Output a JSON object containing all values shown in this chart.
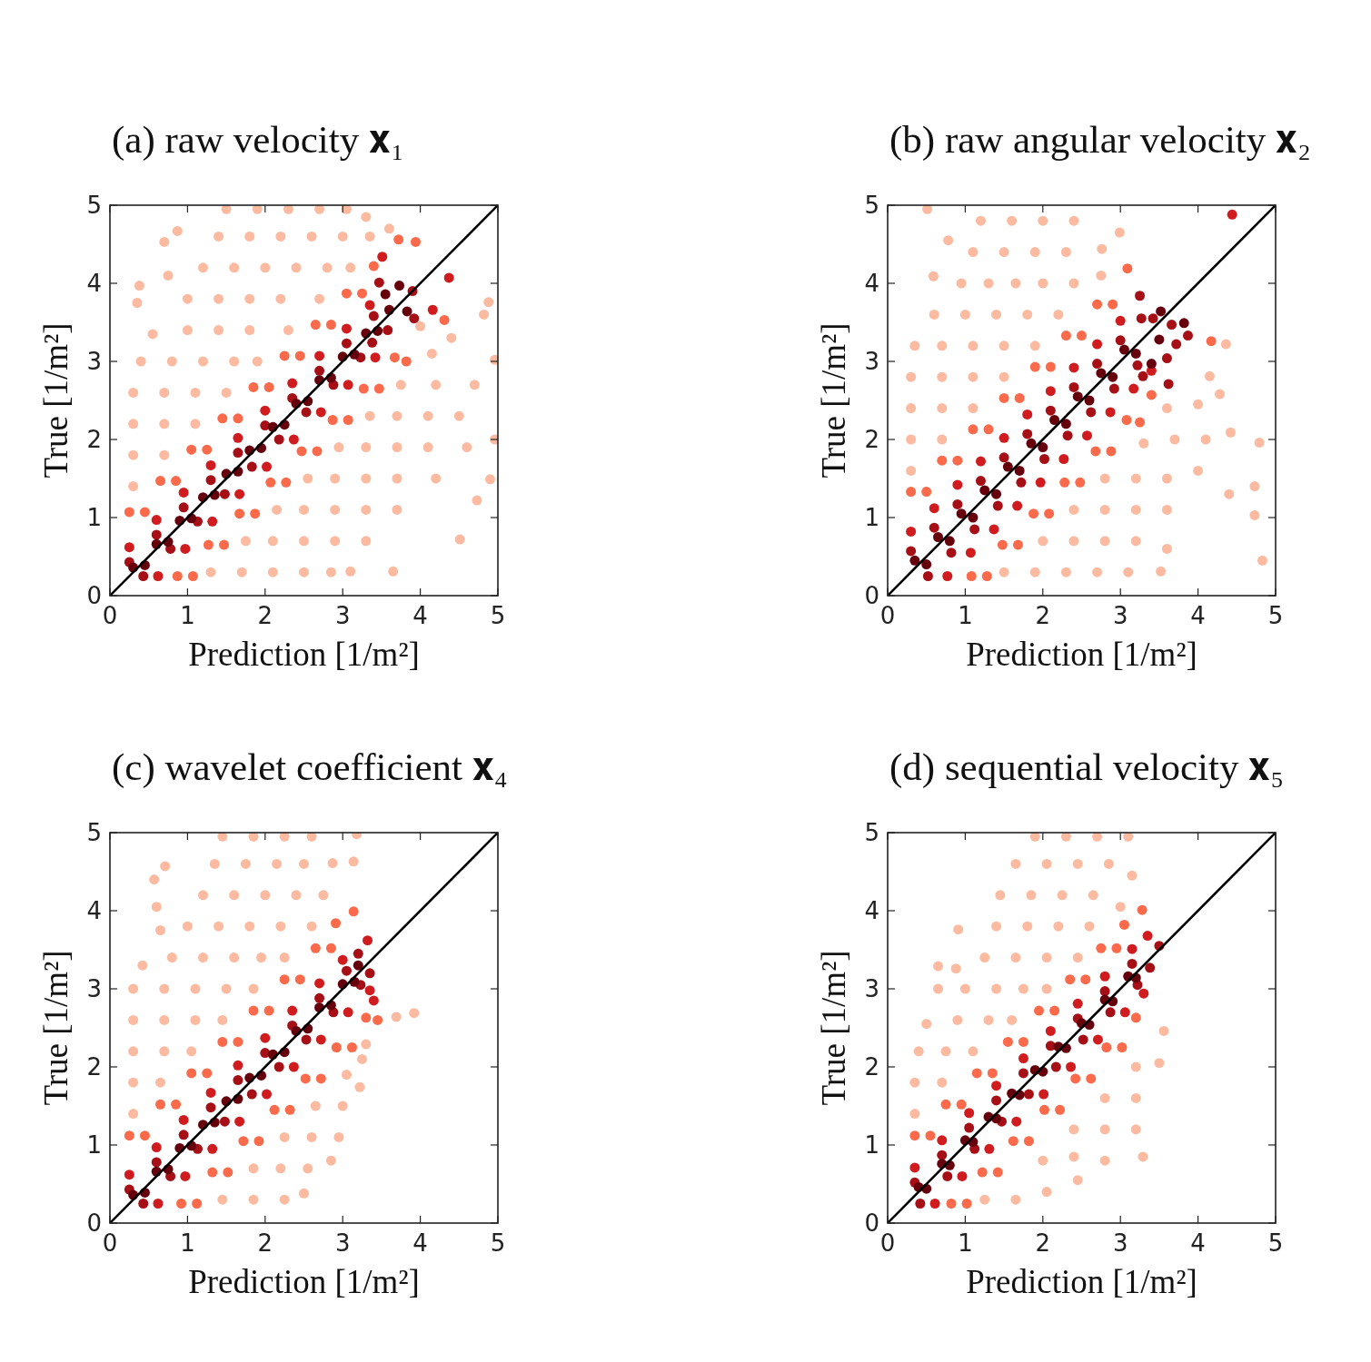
{
  "chart_data": [
    {
      "type": "scatter",
      "title": "(a) raw velocity 𝐱₁",
      "xlabel": "Prediction [1/m²]",
      "ylabel": "True [1/m²]",
      "xlim": [
        0,
        5
      ],
      "ylim": [
        0,
        5
      ],
      "xticks": [
        0,
        1,
        2,
        3,
        4,
        5
      ],
      "yticks": [
        0,
        1,
        2,
        3,
        4,
        5
      ],
      "marker": "circle",
      "series": [
        {
          "color": "#fcbba1",
          "x": [
            0.3,
            0.3,
            0.7,
            0.3,
            0.7,
            1.1,
            0.3,
            0.7,
            1.1,
            1.5,
            0.4,
            0.8,
            1.2,
            1.6,
            1.9,
            0.55,
            1.0,
            1.4,
            1.8,
            2.3,
            0.35,
            0.38,
            1.0,
            1.4,
            1.8,
            2.2,
            2.7,
            0.7,
            0.75,
            1.2,
            1.6,
            2.0,
            2.4,
            2.8,
            3.1,
            0.87,
            1.4,
            1.8,
            2.2,
            2.6,
            3.0,
            3.35,
            1.5,
            1.9,
            2.3,
            2.7,
            3.05,
            3.3,
            3.6,
            1.3,
            1.7,
            2.1,
            2.5,
            2.85,
            3.1,
            3.65,
            1.75,
            2.1,
            2.5,
            2.9,
            3.3,
            4.51,
            2.15,
            2.5,
            2.9,
            3.3,
            3.7,
            4.73,
            2.55,
            2.9,
            3.3,
            3.7,
            4.2,
            4.9,
            2.95,
            3.3,
            3.7,
            4.1,
            4.6,
            4.96,
            3.35,
            3.7,
            4.1,
            4.5,
            3.75,
            4.2,
            4.7,
            4.15,
            4.96,
            4.0,
            4.4,
            4.82,
            4.88
          ],
          "values": [
            1.4,
            1.8,
            1.8,
            2.2,
            2.2,
            2.2,
            2.6,
            2.6,
            2.6,
            2.6,
            3.0,
            3.0,
            3.0,
            3.0,
            3.0,
            3.35,
            3.4,
            3.4,
            3.4,
            3.4,
            3.75,
            3.97,
            3.8,
            3.8,
            3.8,
            3.8,
            3.8,
            4.53,
            4.1,
            4.2,
            4.2,
            4.2,
            4.2,
            4.2,
            4.2,
            4.67,
            4.6,
            4.6,
            4.6,
            4.6,
            4.6,
            4.6,
            4.95,
            4.95,
            4.95,
            4.95,
            4.95,
            4.85,
            4.7,
            0.3,
            0.3,
            0.3,
            0.3,
            0.3,
            0.31,
            0.31,
            0.7,
            0.7,
            0.7,
            0.7,
            0.7,
            0.72,
            1.1,
            1.1,
            1.1,
            1.1,
            1.1,
            1.22,
            1.5,
            1.5,
            1.5,
            1.5,
            1.5,
            1.49,
            1.9,
            1.9,
            1.9,
            1.9,
            1.9,
            2.0,
            2.3,
            2.3,
            2.3,
            2.3,
            2.7,
            2.7,
            2.7,
            3.1,
            3.02,
            3.45,
            3.3,
            3.6,
            3.76
          ]
        },
        {
          "color": "#fb6a4a",
          "x": [
            0.25,
            0.65,
            1.05,
            1.45,
            1.85,
            2.25,
            2.65,
            3.05,
            3.4,
            0.45,
            0.85,
            1.25,
            1.65,
            2.05,
            2.45,
            2.85,
            3.25,
            0.87,
            1.27,
            1.67,
            2.07,
            2.47,
            2.87,
            3.27,
            3.67,
            1.07,
            1.47,
            1.87,
            2.27,
            2.67,
            3.07,
            3.47,
            3.82,
            3.72,
            3.94,
            4.31
          ],
          "values": [
            1.07,
            1.47,
            1.87,
            2.27,
            2.67,
            3.07,
            3.47,
            3.87,
            4.22,
            1.07,
            1.47,
            1.87,
            2.27,
            2.67,
            3.07,
            3.47,
            3.87,
            0.25,
            0.65,
            1.05,
            1.45,
            1.85,
            2.25,
            2.65,
            3.05,
            0.25,
            0.65,
            1.05,
            1.45,
            1.85,
            2.25,
            2.65,
            3.0,
            4.56,
            4.53,
            3.53
          ]
        },
        {
          "color": "#d01c1f",
          "x": [
            0.25,
            0.6,
            0.95,
            1.3,
            1.65,
            2.0,
            2.35,
            2.7,
            3.05,
            3.35,
            0.62,
            0.97,
            1.32,
            1.67,
            2.02,
            2.37,
            2.72,
            3.07,
            3.42,
            3.51,
            4.37,
            4.16
          ],
          "values": [
            0.62,
            0.97,
            1.32,
            1.67,
            2.02,
            2.37,
            2.72,
            3.07,
            3.42,
            3.72,
            0.25,
            0.6,
            0.95,
            1.3,
            1.65,
            2.0,
            2.35,
            2.7,
            3.05,
            4.34,
            4.07,
            3.66
          ]
        },
        {
          "color": "#a50f15",
          "x": [
            0.25,
            0.6,
            0.95,
            1.3,
            1.65,
            2.0,
            2.35,
            2.7,
            3.05,
            3.4,
            0.43,
            0.78,
            1.13,
            1.48,
            1.83,
            2.18,
            2.53,
            2.88,
            3.23,
            3.58,
            3.47,
            3.9,
            3.92,
            3.38
          ],
          "values": [
            0.43,
            0.78,
            1.13,
            1.48,
            1.83,
            2.18,
            2.53,
            2.88,
            3.23,
            3.58,
            0.25,
            0.6,
            0.95,
            1.3,
            1.65,
            2.0,
            2.35,
            2.7,
            3.05,
            3.4,
            4.01,
            3.9,
            3.55,
            3.24
          ]
        },
        {
          "color": "#67000d",
          "x": [
            0.3,
            0.6,
            0.9,
            1.2,
            1.5,
            1.8,
            2.1,
            2.4,
            2.7,
            3.0,
            3.3,
            3.6,
            0.45,
            0.75,
            1.05,
            1.35,
            1.65,
            1.95,
            2.25,
            2.55,
            2.85,
            3.15,
            3.45,
            3.73,
            3.55,
            3.83
          ],
          "values": [
            0.36,
            0.66,
            0.96,
            1.26,
            1.56,
            1.86,
            2.16,
            2.46,
            2.76,
            3.06,
            3.36,
            3.66,
            0.39,
            0.69,
            0.99,
            1.29,
            1.59,
            1.89,
            2.19,
            2.49,
            2.79,
            3.09,
            3.39,
            3.97,
            3.86,
            3.64
          ]
        },
        {
          "type": "line",
          "marker": "none",
          "color": "#000000",
          "x": [
            0,
            5
          ],
          "values": [
            0,
            5
          ]
        }
      ]
    },
    {
      "type": "scatter",
      "title": "(b) raw angular velocity 𝐱₂",
      "xlabel": "Prediction [1/m²]",
      "ylabel": "True [1/m²]",
      "xlim": [
        0,
        5
      ],
      "ylim": [
        0,
        5
      ],
      "xticks": [
        0,
        1,
        2,
        3,
        4,
        5
      ],
      "yticks": [
        0,
        1,
        2,
        3,
        4,
        5
      ],
      "marker": "circle",
      "series": [
        {
          "color": "#fcbba1",
          "x": [
            0.3,
            0.3,
            0.7,
            0.3,
            0.7,
            1.1,
            0.3,
            0.7,
            1.1,
            1.5,
            0.35,
            0.7,
            1.1,
            1.5,
            1.9,
            0.6,
            1.0,
            1.4,
            1.8,
            2.2,
            0.59,
            0.95,
            1.3,
            1.65,
            2.0,
            2.4,
            2.75,
            0.78,
            1.1,
            1.5,
            1.9,
            2.3,
            2.76,
            1.2,
            1.6,
            2.0,
            2.4,
            2.99,
            0.51,
            1.5,
            1.9,
            2.3,
            2.7,
            3.1,
            3.52,
            2.0,
            2.4,
            2.8,
            3.2,
            3.6,
            4.83,
            2.4,
            2.8,
            3.2,
            3.6,
            4.4,
            4.73,
            2.8,
            3.2,
            3.6,
            4.0,
            4.73,
            3.3,
            3.7,
            4.1,
            4.42,
            4.79,
            3.6,
            4.0,
            4.28,
            4.15,
            4.36
          ],
          "values": [
            1.6,
            2.0,
            2.0,
            2.4,
            2.4,
            2.4,
            2.8,
            2.8,
            2.8,
            2.8,
            3.2,
            3.2,
            3.2,
            3.2,
            3.2,
            3.6,
            3.6,
            3.6,
            3.6,
            3.6,
            4.09,
            4.0,
            4.0,
            4.0,
            4.0,
            4.0,
            4.1,
            4.55,
            4.4,
            4.4,
            4.4,
            4.4,
            4.44,
            4.8,
            4.8,
            4.8,
            4.8,
            4.65,
            4.95,
            0.3,
            0.3,
            0.3,
            0.3,
            0.3,
            0.31,
            0.7,
            0.7,
            0.7,
            0.7,
            0.6,
            0.45,
            1.1,
            1.1,
            1.1,
            1.1,
            1.3,
            1.03,
            1.5,
            1.5,
            1.5,
            1.6,
            1.4,
            1.95,
            2.0,
            2.0,
            2.09,
            1.96,
            2.4,
            2.45,
            2.58,
            2.81,
            3.22
          ]
        },
        {
          "color": "#fb6a4a",
          "x": [
            0.3,
            0.7,
            1.1,
            1.5,
            1.9,
            2.3,
            2.7,
            0.5,
            0.9,
            1.3,
            1.7,
            2.1,
            2.5,
            2.9,
            1.08,
            1.48,
            1.88,
            2.28,
            2.68,
            3.08,
            3.4,
            1.28,
            1.68,
            2.08,
            2.48,
            2.88,
            3.25,
            3.09,
            4.17
          ],
          "values": [
            1.33,
            1.73,
            2.13,
            2.53,
            2.93,
            3.33,
            3.73,
            1.33,
            1.73,
            2.13,
            2.53,
            2.93,
            3.33,
            3.73,
            0.25,
            0.65,
            1.05,
            1.45,
            1.85,
            2.25,
            2.57,
            0.25,
            0.65,
            1.05,
            1.45,
            1.85,
            2.22,
            4.19,
            3.26
          ]
        },
        {
          "color": "#d01c1f",
          "x": [
            0.3,
            0.6,
            0.9,
            1.2,
            1.5,
            1.8,
            2.1,
            2.4,
            2.7,
            3.0,
            0.77,
            1.07,
            1.37,
            1.67,
            1.97,
            2.27,
            2.57,
            2.87,
            3.17,
            3.4,
            4.44
          ],
          "values": [
            0.82,
            1.12,
            1.42,
            1.72,
            2.02,
            2.32,
            2.62,
            2.92,
            3.22,
            3.52,
            0.25,
            0.55,
            0.85,
            1.15,
            1.45,
            1.75,
            2.05,
            2.35,
            2.65,
            2.88,
            4.88
          ]
        },
        {
          "color": "#a50f15",
          "x": [
            0.3,
            0.6,
            0.9,
            1.2,
            1.5,
            1.8,
            2.1,
            2.4,
            2.7,
            3.0,
            0.52,
            0.82,
            1.12,
            1.42,
            1.72,
            2.02,
            2.32,
            2.62,
            2.92,
            3.22,
            3.25,
            3.27,
            3.42,
            3.66,
            3.87,
            3.72,
            3.6,
            3.29,
            3.62
          ],
          "values": [
            0.57,
            0.87,
            1.17,
            1.47,
            1.77,
            2.07,
            2.37,
            2.67,
            2.97,
            3.27,
            0.25,
            0.55,
            0.85,
            1.15,
            1.45,
            1.75,
            2.05,
            2.35,
            2.65,
            2.95,
            3.84,
            3.55,
            3.55,
            3.47,
            3.33,
            3.22,
            3.04,
            2.81,
            2.71
          ]
        },
        {
          "color": "#67000d",
          "x": [
            0.35,
            0.65,
            0.95,
            1.25,
            1.55,
            1.85,
            2.15,
            2.45,
            2.75,
            3.05,
            0.5,
            0.8,
            1.1,
            1.4,
            1.7,
            2.0,
            2.3,
            2.6,
            2.9,
            3.2,
            3.52,
            3.82,
            3.5,
            3.4
          ],
          "values": [
            0.45,
            0.75,
            1.05,
            1.35,
            1.65,
            1.95,
            2.25,
            2.55,
            2.85,
            3.15,
            0.4,
            0.7,
            1.0,
            1.3,
            1.6,
            1.9,
            2.2,
            2.5,
            2.8,
            3.1,
            3.64,
            3.49,
            3.28,
            2.97
          ]
        },
        {
          "type": "line",
          "marker": "none",
          "color": "#000000",
          "x": [
            0,
            5
          ],
          "values": [
            0,
            5
          ]
        }
      ]
    },
    {
      "type": "scatter",
      "title": "(c) wavelet coefficient 𝐱₄",
      "xlabel": "Prediction [1/m²]",
      "ylabel": "True [1/m²]",
      "xlim": [
        0,
        5
      ],
      "ylim": [
        0,
        5
      ],
      "xticks": [
        0,
        1,
        2,
        3,
        4,
        5
      ],
      "yticks": [
        0,
        1,
        2,
        3,
        4,
        5
      ],
      "marker": "circle",
      "series": [
        {
          "color": "#fcbba1",
          "x": [
            0.3,
            0.3,
            0.65,
            0.3,
            0.7,
            1.05,
            0.3,
            0.7,
            1.1,
            1.45,
            0.3,
            0.7,
            1.1,
            1.5,
            1.85,
            0.42,
            0.8,
            1.2,
            1.6,
            1.95,
            2.25,
            0.65,
            0.6,
            0.57,
            0.71,
            1.0,
            1.4,
            1.8,
            2.2,
            2.6,
            1.2,
            1.6,
            2.0,
            2.4,
            2.75,
            1.35,
            1.75,
            2.15,
            2.5,
            2.87,
            1.45,
            1.85,
            2.25,
            2.6,
            3.14,
            3.18,
            1.45,
            1.85,
            2.25,
            2.5,
            1.85,
            2.2,
            2.55,
            2.85,
            2.25,
            2.6,
            2.95,
            2.65,
            3.0,
            3.22,
            3.05,
            3.25,
            3.3,
            3.69,
            3.92
          ],
          "values": [
            1.4,
            1.8,
            1.8,
            2.2,
            2.2,
            2.2,
            2.6,
            2.6,
            2.6,
            2.6,
            3.0,
            3.0,
            3.0,
            3.0,
            3.0,
            3.3,
            3.4,
            3.4,
            3.4,
            3.4,
            3.4,
            3.75,
            4.05,
            4.4,
            4.57,
            3.8,
            3.8,
            3.8,
            3.8,
            3.8,
            4.2,
            4.2,
            4.2,
            4.2,
            4.2,
            4.6,
            4.6,
            4.6,
            4.6,
            4.61,
            4.95,
            4.95,
            4.95,
            4.95,
            4.63,
            4.98,
            0.3,
            0.3,
            0.3,
            0.38,
            0.7,
            0.7,
            0.7,
            0.8,
            1.1,
            1.1,
            1.1,
            1.5,
            1.5,
            1.74,
            1.9,
            2.1,
            2.29,
            2.64,
            2.69
          ]
        },
        {
          "color": "#fb6a4a",
          "x": [
            0.25,
            0.65,
            1.05,
            1.45,
            1.85,
            2.25,
            2.65,
            0.45,
            0.85,
            1.25,
            1.65,
            2.05,
            2.45,
            2.85,
            0.92,
            1.32,
            1.72,
            2.12,
            2.52,
            2.92,
            3.3,
            1.12,
            1.52,
            1.92,
            2.32,
            2.72,
            3.12,
            2.91,
            3.14,
            3.45
          ],
          "values": [
            1.12,
            1.52,
            1.92,
            2.32,
            2.72,
            3.12,
            3.52,
            1.12,
            1.52,
            1.92,
            2.32,
            2.72,
            3.12,
            3.52,
            0.25,
            0.65,
            1.05,
            1.45,
            1.85,
            2.25,
            2.63,
            0.25,
            0.65,
            1.05,
            1.45,
            1.85,
            2.25,
            3.84,
            3.99,
            2.6
          ]
        },
        {
          "color": "#d01c1f",
          "x": [
            0.25,
            0.6,
            0.95,
            1.3,
            1.65,
            2.0,
            2.35,
            2.7,
            3.0,
            0.62,
            0.97,
            1.32,
            1.67,
            2.02,
            2.37,
            2.72,
            3.07,
            3.35,
            3.32,
            3.4
          ],
          "values": [
            0.62,
            0.97,
            1.32,
            1.67,
            2.02,
            2.37,
            2.72,
            3.07,
            3.37,
            0.25,
            0.6,
            0.95,
            1.3,
            1.65,
            2.0,
            2.35,
            2.7,
            2.98,
            3.62,
            2.85
          ]
        },
        {
          "color": "#a50f15",
          "x": [
            0.25,
            0.6,
            0.95,
            1.3,
            1.65,
            2.0,
            2.35,
            2.7,
            3.05,
            0.43,
            0.78,
            1.13,
            1.48,
            1.83,
            2.18,
            2.53,
            2.88,
            3.23,
            3.2,
            3.35
          ],
          "values": [
            0.43,
            0.78,
            1.13,
            1.48,
            1.83,
            2.18,
            2.53,
            2.88,
            3.23,
            0.25,
            0.6,
            0.95,
            1.3,
            1.65,
            2.0,
            2.35,
            2.7,
            3.05,
            3.45,
            3.2
          ]
        },
        {
          "color": "#67000d",
          "x": [
            0.3,
            0.6,
            0.9,
            1.2,
            1.5,
            1.8,
            2.1,
            2.4,
            2.7,
            3.0,
            3.2,
            0.45,
            0.75,
            1.05,
            1.35,
            1.65,
            1.95,
            2.25,
            2.55,
            2.85,
            3.15
          ],
          "values": [
            0.36,
            0.66,
            0.96,
            1.26,
            1.56,
            1.86,
            2.16,
            2.46,
            2.76,
            3.06,
            3.3,
            0.39,
            0.69,
            0.99,
            1.29,
            1.59,
            1.89,
            2.19,
            2.49,
            2.79,
            3.09
          ]
        },
        {
          "type": "line",
          "marker": "none",
          "color": "#000000",
          "x": [
            0,
            5
          ],
          "values": [
            0,
            5
          ]
        }
      ]
    },
    {
      "type": "scatter",
      "title": "(d) sequential velocity 𝐱₅",
      "xlabel": "Prediction [1/m²]",
      "ylabel": "True [1/m²]",
      "xlim": [
        0,
        5
      ],
      "ylim": [
        0,
        5
      ],
      "xticks": [
        0,
        1,
        2,
        3,
        4,
        5
      ],
      "yticks": [
        0,
        1,
        2,
        3,
        4,
        5
      ],
      "marker": "circle",
      "series": [
        {
          "color": "#fcbba1",
          "x": [
            0.35,
            0.35,
            0.7,
            0.4,
            0.75,
            1.1,
            0.5,
            0.9,
            1.3,
            1.6,
            0.65,
            1.0,
            1.4,
            1.75,
            2.05,
            0.65,
            0.88,
            1.25,
            1.65,
            2.05,
            2.45,
            0.91,
            1.4,
            1.8,
            2.2,
            2.6,
            3.0,
            1.45,
            1.85,
            2.25,
            2.65,
            1.65,
            2.05,
            2.45,
            2.85,
            3.15,
            1.9,
            2.3,
            2.7,
            3.1,
            1.25,
            1.65,
            2.05,
            2.45,
            2.0,
            2.4,
            2.8,
            3.29,
            2.4,
            2.8,
            3.2,
            2.8,
            3.2,
            3.2,
            3.5,
            3.56
          ],
          "values": [
            1.4,
            1.8,
            1.8,
            2.2,
            2.2,
            2.2,
            2.55,
            2.6,
            2.6,
            2.6,
            3.0,
            3.0,
            3.0,
            3.0,
            3.0,
            3.29,
            3.26,
            3.4,
            3.4,
            3.4,
            3.4,
            3.76,
            3.8,
            3.8,
            3.8,
            3.8,
            4.05,
            4.2,
            4.2,
            4.2,
            4.2,
            4.6,
            4.6,
            4.6,
            4.6,
            4.45,
            4.95,
            4.95,
            4.95,
            4.95,
            0.3,
            0.3,
            0.4,
            0.55,
            0.8,
            0.85,
            0.8,
            0.85,
            1.2,
            1.2,
            1.2,
            1.6,
            1.6,
            2.0,
            2.05,
            2.46
          ]
        },
        {
          "color": "#fb6a4a",
          "x": [
            0.35,
            0.75,
            1.15,
            1.55,
            1.95,
            2.35,
            2.75,
            3.05,
            0.55,
            0.95,
            1.35,
            1.75,
            2.15,
            2.55,
            2.95,
            0.82,
            1.22,
            1.62,
            2.02,
            2.42,
            2.82,
            3.2,
            1.02,
            1.42,
            1.82,
            2.22,
            2.62,
            3.02,
            3.28
          ],
          "values": [
            1.12,
            1.52,
            1.92,
            2.32,
            2.72,
            3.12,
            3.52,
            3.82,
            1.12,
            1.52,
            1.92,
            2.32,
            2.72,
            3.12,
            3.52,
            0.25,
            0.65,
            1.05,
            1.45,
            1.85,
            2.25,
            2.63,
            0.25,
            0.65,
            1.05,
            1.45,
            1.85,
            2.25,
            4.01
          ]
        },
        {
          "color": "#d01c1f",
          "x": [
            0.35,
            0.7,
            1.05,
            1.4,
            1.75,
            2.1,
            2.45,
            2.8,
            3.15,
            0.61,
            0.96,
            1.31,
            1.66,
            2.01,
            2.36,
            2.71,
            3.06,
            3.3,
            3.35
          ],
          "values": [
            0.71,
            1.06,
            1.41,
            1.76,
            2.11,
            2.46,
            2.81,
            3.16,
            3.51,
            0.25,
            0.6,
            0.95,
            1.3,
            1.65,
            2.0,
            2.35,
            2.7,
            2.94,
            3.68
          ]
        },
        {
          "color": "#a50f15",
          "x": [
            0.35,
            0.7,
            1.05,
            1.4,
            1.75,
            2.1,
            2.45,
            2.8,
            3.15,
            0.42,
            0.77,
            1.12,
            1.47,
            1.82,
            2.17,
            2.52,
            2.87,
            3.22,
            3.5,
            3.38
          ],
          "values": [
            0.52,
            0.87,
            1.22,
            1.57,
            1.92,
            2.27,
            2.62,
            2.97,
            3.32,
            0.25,
            0.6,
            0.95,
            1.3,
            1.65,
            2.0,
            2.35,
            2.7,
            3.05,
            3.55,
            3.27
          ]
        },
        {
          "color": "#67000d",
          "x": [
            0.4,
            0.7,
            1.0,
            1.3,
            1.6,
            1.9,
            2.2,
            2.5,
            2.8,
            3.1,
            0.5,
            0.8,
            1.1,
            1.4,
            1.7,
            2.0,
            2.3,
            2.6,
            2.9,
            3.2
          ],
          "values": [
            0.46,
            0.76,
            1.06,
            1.36,
            1.66,
            1.96,
            2.26,
            2.56,
            2.86,
            3.16,
            0.44,
            0.74,
            1.04,
            1.34,
            1.64,
            1.94,
            2.24,
            2.54,
            2.84,
            3.14
          ]
        },
        {
          "type": "line",
          "marker": "none",
          "color": "#000000",
          "x": [
            0,
            5
          ],
          "values": [
            0,
            5
          ]
        }
      ]
    }
  ]
}
